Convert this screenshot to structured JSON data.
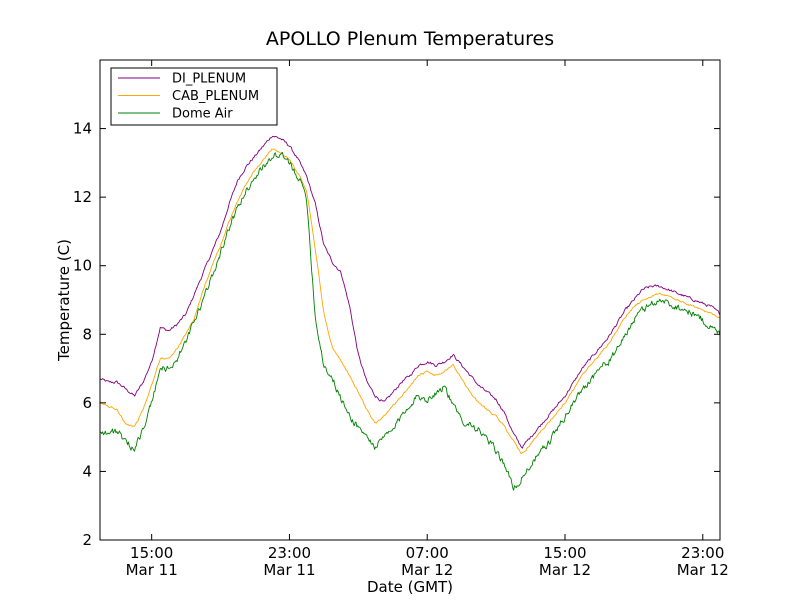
{
  "chart_data": {
    "type": "line",
    "title": "APOLLO Plenum Temperatures",
    "xlabel": "Date (GMT)",
    "ylabel": "Temperature (C)",
    "xlim": [
      12.0,
      48.0
    ],
    "ylim": [
      2,
      16
    ],
    "yticks": [
      2,
      4,
      6,
      8,
      10,
      12,
      14
    ],
    "xticks": [
      {
        "x": 15,
        "time": "15:00",
        "date": "Mar 11"
      },
      {
        "x": 23,
        "time": "23:00",
        "date": "Mar 11"
      },
      {
        "x": 31,
        "time": "07:00",
        "date": "Mar 12"
      },
      {
        "x": 39,
        "time": "15:00",
        "date": "Mar 12"
      },
      {
        "x": 47,
        "time": "23:00",
        "date": "Mar 12"
      }
    ],
    "legend_position": "top-left",
    "series": [
      {
        "name": "DI_PLENUM",
        "color": "#800080",
        "noise": 0.07,
        "x": [
          12.0,
          12.5,
          13.0,
          13.5,
          14.0,
          14.5,
          15.0,
          15.5,
          16.0,
          16.5,
          17.0,
          17.5,
          18.0,
          18.5,
          19.0,
          19.5,
          20.0,
          20.5,
          21.0,
          21.5,
          22.0,
          22.5,
          23.0,
          23.5,
          24.0,
          24.5,
          25.0,
          25.5,
          26.0,
          26.5,
          27.0,
          27.5,
          28.0,
          28.5,
          29.0,
          29.5,
          30.0,
          30.5,
          31.0,
          31.5,
          32.0,
          32.5,
          33.0,
          33.5,
          34.0,
          34.5,
          35.0,
          35.5,
          36.0,
          36.5,
          37.0,
          37.5,
          38.0,
          38.5,
          39.0,
          39.5,
          40.0,
          40.5,
          41.0,
          41.5,
          42.0,
          42.5,
          43.0,
          43.5,
          44.0,
          44.5,
          45.0,
          45.5,
          46.0,
          46.5,
          47.0,
          47.5,
          48.0
        ],
        "y": [
          6.7,
          6.6,
          6.6,
          6.4,
          6.2,
          6.6,
          7.2,
          8.2,
          8.1,
          8.3,
          8.6,
          9.2,
          9.8,
          10.4,
          11.0,
          11.8,
          12.5,
          12.9,
          13.2,
          13.5,
          13.8,
          13.7,
          13.5,
          13.1,
          12.6,
          11.8,
          10.6,
          10.1,
          9.8,
          8.8,
          7.4,
          6.6,
          6.2,
          6.0,
          6.3,
          6.6,
          6.8,
          7.1,
          7.2,
          7.1,
          7.2,
          7.4,
          7.1,
          6.8,
          6.5,
          6.3,
          6.1,
          5.7,
          5.1,
          4.7,
          5.0,
          5.3,
          5.6,
          5.9,
          6.2,
          6.6,
          7.0,
          7.3,
          7.6,
          7.9,
          8.3,
          8.7,
          9.0,
          9.3,
          9.4,
          9.4,
          9.3,
          9.2,
          9.1,
          9.0,
          8.9,
          8.8,
          8.6
        ]
      },
      {
        "name": "CAB_PLENUM",
        "color": "#ffa500",
        "noise": 0.05,
        "x": [
          12.0,
          12.5,
          13.0,
          13.5,
          14.0,
          14.5,
          15.0,
          15.5,
          16.0,
          16.5,
          17.0,
          17.5,
          18.0,
          18.5,
          19.0,
          19.5,
          20.0,
          20.5,
          21.0,
          21.5,
          22.0,
          22.5,
          23.0,
          23.5,
          24.0,
          24.5,
          25.0,
          25.5,
          26.0,
          26.5,
          27.0,
          27.5,
          28.0,
          28.5,
          29.0,
          29.5,
          30.0,
          30.5,
          31.0,
          31.5,
          32.0,
          32.5,
          33.0,
          33.5,
          34.0,
          34.5,
          35.0,
          35.5,
          36.0,
          36.5,
          37.0,
          37.5,
          38.0,
          38.5,
          39.0,
          39.5,
          40.0,
          40.5,
          41.0,
          41.5,
          42.0,
          42.5,
          43.0,
          43.5,
          44.0,
          44.5,
          45.0,
          45.5,
          46.0,
          46.5,
          47.0,
          47.5,
          48.0
        ],
        "y": [
          6.0,
          5.9,
          5.8,
          5.4,
          5.3,
          5.8,
          6.5,
          7.3,
          7.3,
          7.6,
          8.0,
          8.5,
          9.3,
          10.0,
          10.6,
          11.3,
          11.9,
          12.4,
          12.8,
          13.1,
          13.4,
          13.3,
          13.1,
          12.7,
          12.2,
          10.5,
          8.6,
          7.6,
          7.2,
          6.8,
          6.3,
          5.8,
          5.4,
          5.6,
          5.9,
          6.2,
          6.5,
          6.8,
          6.9,
          6.8,
          6.9,
          7.1,
          6.7,
          6.3,
          6.0,
          5.8,
          5.6,
          5.3,
          4.9,
          4.5,
          4.8,
          5.1,
          5.4,
          5.7,
          6.0,
          6.4,
          6.8,
          7.1,
          7.4,
          7.7,
          8.1,
          8.5,
          8.8,
          9.0,
          9.1,
          9.2,
          9.1,
          9.0,
          8.9,
          8.8,
          8.7,
          8.6,
          8.5
        ]
      },
      {
        "name": "Dome Air",
        "color": "#008000",
        "noise": 0.18,
        "x": [
          12.0,
          12.5,
          13.0,
          13.5,
          14.0,
          14.5,
          15.0,
          15.5,
          16.0,
          16.5,
          17.0,
          17.5,
          18.0,
          18.5,
          19.0,
          19.5,
          20.0,
          20.5,
          21.0,
          21.5,
          22.0,
          22.5,
          23.0,
          23.5,
          24.0,
          24.5,
          25.0,
          25.5,
          26.0,
          26.5,
          27.0,
          27.5,
          28.0,
          28.5,
          29.0,
          29.5,
          30.0,
          30.5,
          31.0,
          31.5,
          32.0,
          32.5,
          33.0,
          33.5,
          34.0,
          34.5,
          35.0,
          35.5,
          36.0,
          36.5,
          37.0,
          37.5,
          38.0,
          38.5,
          39.0,
          39.5,
          40.0,
          40.5,
          41.0,
          41.5,
          42.0,
          42.5,
          43.0,
          43.5,
          44.0,
          44.5,
          45.0,
          45.5,
          46.0,
          46.5,
          47.0,
          47.5,
          48.0
        ],
        "y": [
          5.2,
          5.1,
          5.2,
          4.8,
          4.7,
          5.2,
          6.0,
          7.0,
          7.0,
          7.3,
          7.8,
          8.4,
          9.0,
          9.7,
          10.4,
          11.1,
          11.7,
          12.2,
          12.6,
          12.9,
          13.2,
          13.2,
          13.0,
          12.6,
          12.0,
          8.5,
          7.1,
          6.7,
          6.1,
          5.6,
          5.3,
          5.0,
          4.7,
          5.0,
          5.2,
          5.6,
          6.0,
          6.2,
          6.1,
          6.3,
          6.5,
          5.9,
          5.5,
          5.4,
          5.2,
          4.9,
          4.6,
          4.2,
          3.5,
          3.8,
          4.2,
          4.5,
          4.8,
          5.2,
          5.6,
          6.0,
          6.4,
          6.7,
          7.0,
          7.2,
          7.5,
          8.0,
          8.4,
          8.7,
          8.9,
          9.0,
          8.9,
          8.8,
          8.7,
          8.6,
          8.4,
          8.2,
          8.0
        ]
      }
    ]
  }
}
